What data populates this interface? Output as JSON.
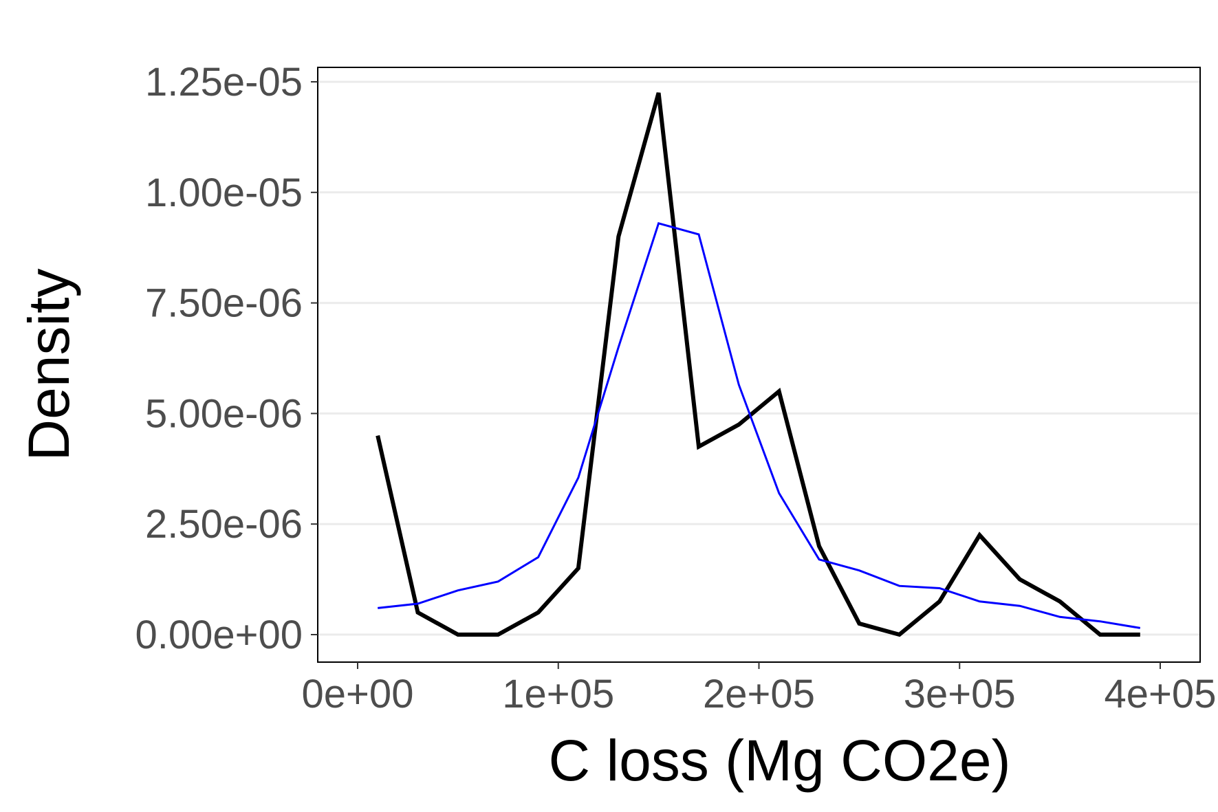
{
  "chart_data": {
    "type": "line",
    "title": "",
    "xlabel": "C loss (Mg CO2e)",
    "ylabel": "Density",
    "xlim": [
      -10000,
      410000
    ],
    "ylim": [
      -8e-07,
      1.3e-05
    ],
    "x_ticks": [
      {
        "value": 0,
        "label": "0e+00"
      },
      {
        "value": 100000,
        "label": "1e+05"
      },
      {
        "value": 200000,
        "label": "2e+05"
      },
      {
        "value": 300000,
        "label": "3e+05"
      },
      {
        "value": 400000,
        "label": "4e+05"
      }
    ],
    "y_ticks": [
      {
        "value": 0,
        "label": "0.00e+00"
      },
      {
        "value": 2.5e-06,
        "label": "2.50e-06"
      },
      {
        "value": 5e-06,
        "label": "5.00e-06"
      },
      {
        "value": 7.5e-06,
        "label": "7.50e-06"
      },
      {
        "value": 1e-05,
        "label": "1.00e-05"
      },
      {
        "value": 1.25e-05,
        "label": "1.25e-05"
      }
    ],
    "grid": "horizontal major",
    "legend": "none",
    "series": [
      {
        "color": "#000000",
        "x": [
          10000,
          30000,
          50000,
          70000,
          90000,
          110000,
          130000,
          150000,
          170000,
          190000,
          210000,
          230000,
          250000,
          270000,
          290000,
          310000,
          330000,
          350000,
          370000,
          390000
        ],
        "y": [
          4.5e-06,
          5e-07,
          0,
          0,
          5e-07,
          1.5e-06,
          9e-06,
          1.225e-05,
          4.25e-06,
          4.75e-06,
          5.5e-06,
          2e-06,
          2.5e-07,
          0,
          7.5e-07,
          2.25e-06,
          1.25e-06,
          7.5e-07,
          0,
          0
        ]
      },
      {
        "color": "#0000ff",
        "x": [
          10000,
          30000,
          50000,
          70000,
          90000,
          110000,
          130000,
          150000,
          170000,
          190000,
          210000,
          230000,
          250000,
          270000,
          290000,
          310000,
          330000,
          350000,
          370000,
          390000
        ],
        "y": [
          6e-07,
          7e-07,
          1e-06,
          1.2e-06,
          1.75e-06,
          3.55e-06,
          6.5e-06,
          9.3e-06,
          9.05e-06,
          5.65e-06,
          3.2e-06,
          1.7e-06,
          1.45e-06,
          1.1e-06,
          1.05e-06,
          7.5e-07,
          6.5e-07,
          4e-07,
          3e-07,
          1.5e-07
        ]
      }
    ]
  }
}
